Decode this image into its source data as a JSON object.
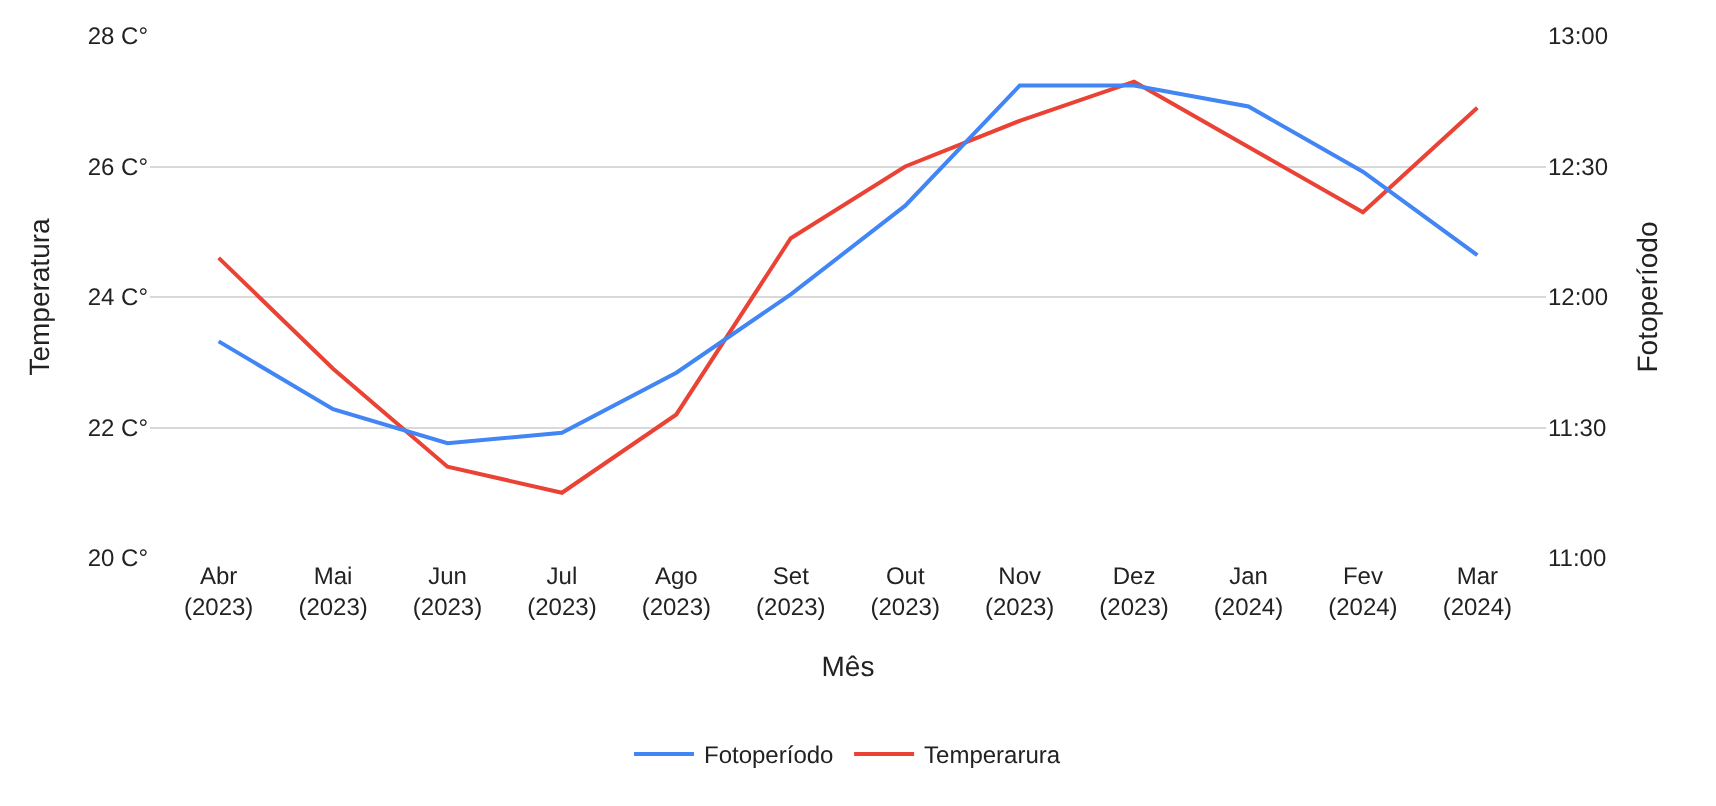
{
  "chart_data": {
    "type": "line",
    "xlabel": "Mês",
    "ylabel": "Temperatura",
    "y2label": "Fotoperíodo",
    "categories": [
      "Abr\n(2023)",
      "Mai\n(2023)",
      "Jun\n(2023)",
      "Jul\n(2023)",
      "Ago\n(2023)",
      "Set\n(2023)",
      "Out\n(2023)",
      "Nov\n(2023)",
      "Dez\n(2023)",
      "Jan\n(2024)",
      "Fev\n(2024)",
      "Mar\n(2024)"
    ],
    "series": [
      {
        "name": "Fotoperíodo",
        "color": "#4285f4",
        "axis": "y2",
        "values": [
          11.83,
          11.57,
          11.44,
          11.48,
          11.71,
          12.01,
          12.35,
          12.81,
          12.81,
          12.73,
          12.48,
          12.16
        ]
      },
      {
        "name": "Temperarura",
        "color": "#ea4335",
        "values": [
          24.6,
          22.9,
          21.4,
          21.0,
          22.2,
          24.9,
          26.0,
          26.7,
          27.3,
          26.3,
          25.3,
          26.9
        ]
      }
    ],
    "ylim": [
      20,
      28
    ],
    "yticks": [
      {
        "value": 20,
        "label": "20 C°"
      },
      {
        "value": 22,
        "label": "22 C°"
      },
      {
        "value": 24,
        "label": "24 C°"
      },
      {
        "value": 26,
        "label": "26 C°"
      },
      {
        "value": 28,
        "label": "28 C°"
      }
    ],
    "y2lim": [
      11,
      13
    ],
    "y2ticks": [
      {
        "value": 11,
        "label": "11:00"
      },
      {
        "value": 11.5,
        "label": "11:30"
      },
      {
        "value": 12,
        "label": "12:00"
      },
      {
        "value": 12.5,
        "label": "12:30"
      },
      {
        "value": 13,
        "label": "13:00"
      }
    ],
    "grid": "y",
    "legend": "bottom",
    "marker": "none",
    "line_style": "solid"
  }
}
